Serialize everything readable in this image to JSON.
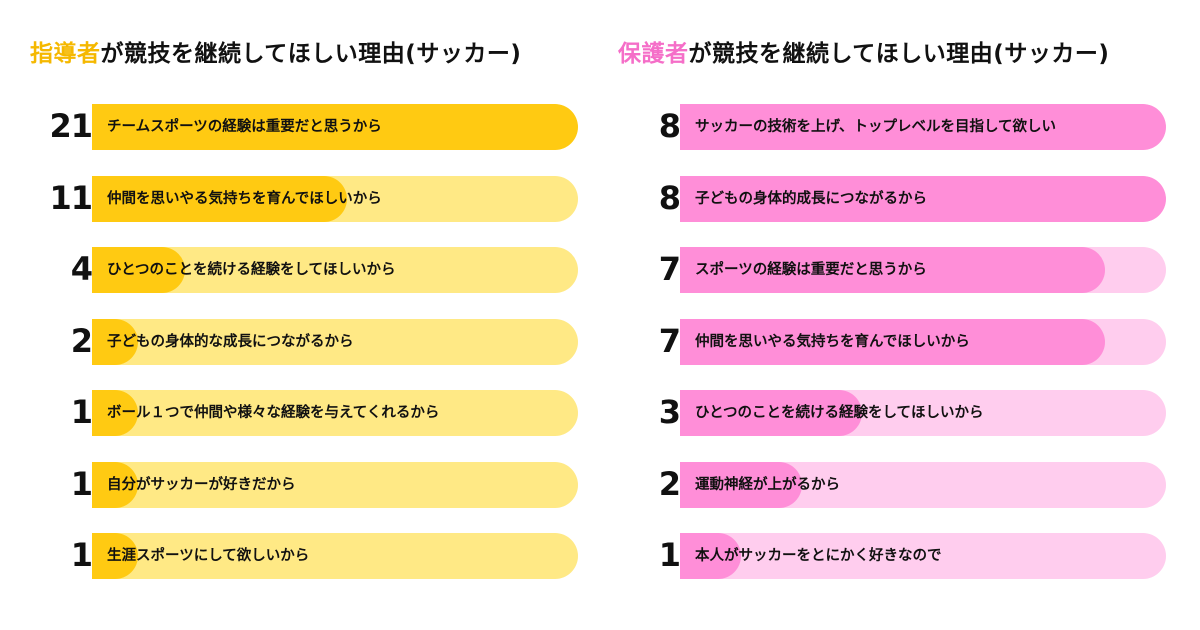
{
  "chart_data": [
    {
      "type": "bar",
      "title_accent": "指導者",
      "title_rest": "が競技を継続してほしい理由(サッカー)",
      "unit": "名",
      "colors": {
        "accent": "#F5B800",
        "fill": "#FFCA12",
        "track": "#FFE985"
      },
      "categories": [
        "チームスポーツの経験は重要だと思うから",
        "仲間を思いやる気持ちを育んでほしいから",
        "ひとつのことを続ける経験をしてほしいから",
        "子どもの身体的な成長につながるから",
        "ボール１つで仲間や様々な経験を与えてくれるから",
        "自分がサッカーが好きだから",
        "生涯スポーツにして欲しいから"
      ],
      "values": [
        21,
        11,
        4,
        2,
        1,
        1,
        1
      ],
      "max": 21
    },
    {
      "type": "bar",
      "title_accent": "保護者",
      "title_rest": "が競技を継続してほしい理由(サッカー)",
      "unit": "名",
      "colors": {
        "accent": "#F56EC8",
        "fill": "#FF8ED8",
        "track": "#FFCDEE"
      },
      "categories": [
        "サッカーの技術を上げ、トップレベルを目指して欲しい",
        "子どもの身体的成長につながるから",
        "スポーツの経験は重要だと思うから",
        "仲間を思いやる気持ちを育んでほしいから",
        "ひとつのことを続ける経験をしてほしいから",
        "運動神経が上がるから",
        "本人がサッカーをとにかく好きなので"
      ],
      "values": [
        8,
        8,
        7,
        7,
        3,
        2,
        1
      ],
      "max": 8
    }
  ]
}
